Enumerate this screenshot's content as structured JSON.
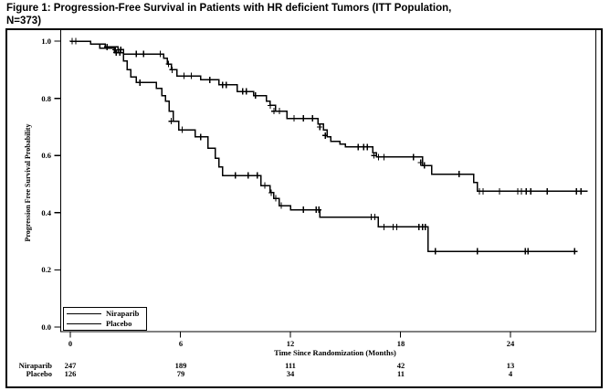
{
  "figure": {
    "title_line1": "Figure 1: Progression-Free Survival in Patients with HR deficient Tumors (ITT Population,",
    "title_line2": "N=373)"
  },
  "chart_data": {
    "type": "line",
    "variant": "kaplan_meier_step",
    "title": "Figure 1: Progression-Free Survival in Patients with HR deficient Tumors (ITT Population, N=373)",
    "xlabel": "Time Since Randomization (Months)",
    "ylabel": "Progression Free Survival Probability",
    "xlim": [
      0,
      28.7
    ],
    "ylim": [
      0.0,
      1.0
    ],
    "x_ticks": [
      0,
      6,
      12,
      18,
      24
    ],
    "x_tick_labels": [
      "0",
      "6",
      "12",
      "18",
      "24"
    ],
    "y_ticks": [
      0.0,
      0.2,
      0.4,
      0.6,
      0.8,
      1.0
    ],
    "y_tick_labels": [
      "0.0",
      "0.2",
      "0.4",
      "0.6",
      "0.8",
      "1.0"
    ],
    "grid": false,
    "line_color": "#000000",
    "legend": {
      "position": "bottom-left",
      "entries": [
        "Niraparib",
        "Placebo"
      ]
    },
    "series": [
      {
        "name": "Niraparib",
        "color": "#000000",
        "steps": [
          [
            0,
            1.0
          ],
          [
            1.1,
            0.99
          ],
          [
            1.9,
            0.98
          ],
          [
            2.6,
            0.97
          ],
          [
            2.9,
            0.955
          ],
          [
            5.1,
            0.94
          ],
          [
            5.3,
            0.92
          ],
          [
            5.5,
            0.9
          ],
          [
            5.8,
            0.878
          ],
          [
            7.1,
            0.865
          ],
          [
            8.1,
            0.847
          ],
          [
            9.1,
            0.824
          ],
          [
            10.0,
            0.81
          ],
          [
            10.7,
            0.79
          ],
          [
            10.9,
            0.775
          ],
          [
            11.2,
            0.755
          ],
          [
            11.8,
            0.73
          ],
          [
            13.5,
            0.71
          ],
          [
            13.8,
            0.69
          ],
          [
            14.0,
            0.665
          ],
          [
            14.2,
            0.65
          ],
          [
            14.7,
            0.64
          ],
          [
            15.0,
            0.63
          ],
          [
            16.5,
            0.61
          ],
          [
            16.7,
            0.595
          ],
          [
            19.2,
            0.565
          ],
          [
            19.7,
            0.535
          ],
          [
            22.0,
            0.505
          ],
          [
            22.2,
            0.475
          ],
          [
            28.2,
            0.475
          ]
        ],
        "censors": [
          [
            0.1,
            1.0
          ],
          [
            0.3,
            1.0
          ],
          [
            2.0,
            0.98
          ],
          [
            2.45,
            0.97
          ],
          [
            2.6,
            0.97
          ],
          [
            2.75,
            0.97
          ],
          [
            3.6,
            0.955
          ],
          [
            4.0,
            0.955
          ],
          [
            4.9,
            0.955
          ],
          [
            5.35,
            0.92
          ],
          [
            5.55,
            0.9
          ],
          [
            6.2,
            0.878
          ],
          [
            6.6,
            0.878
          ],
          [
            7.6,
            0.865
          ],
          [
            8.3,
            0.847
          ],
          [
            8.5,
            0.847
          ],
          [
            9.4,
            0.824
          ],
          [
            9.6,
            0.824
          ],
          [
            10.1,
            0.81
          ],
          [
            10.9,
            0.775
          ],
          [
            11.1,
            0.755
          ],
          [
            11.4,
            0.755
          ],
          [
            12.2,
            0.73
          ],
          [
            12.7,
            0.73
          ],
          [
            13.2,
            0.73
          ],
          [
            13.6,
            0.7
          ],
          [
            13.9,
            0.67
          ],
          [
            15.7,
            0.63
          ],
          [
            16.0,
            0.63
          ],
          [
            16.2,
            0.63
          ],
          [
            16.55,
            0.6
          ],
          [
            16.8,
            0.595
          ],
          [
            17.1,
            0.595
          ],
          [
            18.7,
            0.595
          ],
          [
            19.1,
            0.575
          ],
          [
            19.3,
            0.565
          ],
          [
            21.2,
            0.535
          ],
          [
            22.3,
            0.475
          ],
          [
            22.5,
            0.475
          ],
          [
            23.4,
            0.475
          ],
          [
            24.4,
            0.475
          ],
          [
            24.6,
            0.475
          ],
          [
            24.85,
            0.475
          ],
          [
            25.1,
            0.475
          ],
          [
            26.0,
            0.475
          ],
          [
            27.6,
            0.475
          ],
          [
            27.85,
            0.475
          ]
        ]
      },
      {
        "name": "Placebo",
        "color": "#000000",
        "steps": [
          [
            0,
            1.0
          ],
          [
            1.1,
            0.99
          ],
          [
            1.6,
            0.975
          ],
          [
            2.4,
            0.96
          ],
          [
            2.9,
            0.93
          ],
          [
            3.1,
            0.9
          ],
          [
            3.3,
            0.875
          ],
          [
            3.6,
            0.855
          ],
          [
            4.7,
            0.835
          ],
          [
            5.0,
            0.81
          ],
          [
            5.2,
            0.79
          ],
          [
            5.4,
            0.755
          ],
          [
            5.6,
            0.72
          ],
          [
            5.9,
            0.69
          ],
          [
            6.8,
            0.665
          ],
          [
            7.5,
            0.625
          ],
          [
            7.9,
            0.59
          ],
          [
            8.1,
            0.56
          ],
          [
            8.3,
            0.53
          ],
          [
            10.4,
            0.495
          ],
          [
            10.9,
            0.47
          ],
          [
            11.1,
            0.45
          ],
          [
            11.4,
            0.425
          ],
          [
            12.0,
            0.41
          ],
          [
            13.6,
            0.385
          ],
          [
            16.8,
            0.35
          ],
          [
            19.5,
            0.265
          ],
          [
            27.6,
            0.265
          ]
        ],
        "censors": [
          [
            2.5,
            0.96
          ],
          [
            2.7,
            0.96
          ],
          [
            3.8,
            0.855
          ],
          [
            5.5,
            0.72
          ],
          [
            6.1,
            0.69
          ],
          [
            7.1,
            0.665
          ],
          [
            9.0,
            0.53
          ],
          [
            9.7,
            0.53
          ],
          [
            10.2,
            0.53
          ],
          [
            10.6,
            0.495
          ],
          [
            10.95,
            0.47
          ],
          [
            11.2,
            0.45
          ],
          [
            11.5,
            0.425
          ],
          [
            12.7,
            0.41
          ],
          [
            13.4,
            0.41
          ],
          [
            13.55,
            0.41
          ],
          [
            16.4,
            0.385
          ],
          [
            16.6,
            0.385
          ],
          [
            17.1,
            0.35
          ],
          [
            17.6,
            0.35
          ],
          [
            17.8,
            0.35
          ],
          [
            19.0,
            0.35
          ],
          [
            19.2,
            0.35
          ],
          [
            19.35,
            0.35
          ],
          [
            19.9,
            0.265
          ],
          [
            22.2,
            0.265
          ],
          [
            24.8,
            0.265
          ],
          [
            24.95,
            0.265
          ],
          [
            27.5,
            0.265
          ]
        ]
      }
    ],
    "at_risk": {
      "time_points": [
        0,
        6,
        12,
        18,
        24
      ],
      "rows": [
        {
          "label": "Niraparib",
          "counts": [
            "247",
            "189",
            "111",
            "42",
            "13"
          ]
        },
        {
          "label": "Placebo",
          "counts": [
            "126",
            "79",
            "34",
            "11",
            "4"
          ]
        }
      ]
    }
  }
}
